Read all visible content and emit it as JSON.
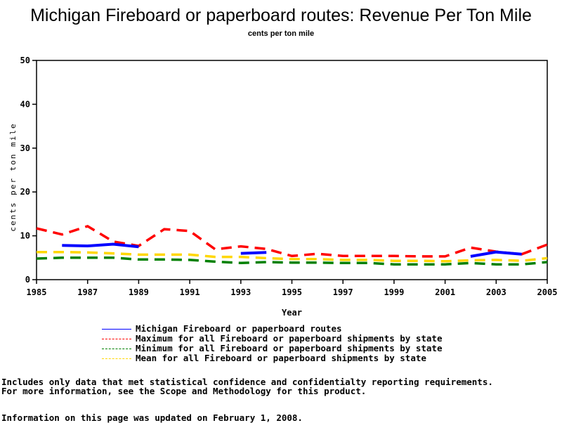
{
  "chart_data": {
    "type": "line",
    "title": "Michigan Fireboard or paperboard routes: Revenue Per Ton Mile",
    "subtitle": "cents per ton mile",
    "xlabel": "Year",
    "ylabel": "cents per ton mile",
    "xlim": [
      1985,
      2005
    ],
    "ylim": [
      0,
      50
    ],
    "x_ticks": [
      "1985",
      "1987",
      "1989",
      "1991",
      "1993",
      "1995",
      "1997",
      "1999",
      "2001",
      "2003",
      "2005"
    ],
    "y_ticks": [
      "0",
      "10",
      "20",
      "30",
      "40",
      "50"
    ],
    "grid": false,
    "legend_position": "bottom",
    "x": [
      1985,
      1986,
      1987,
      1988,
      1989,
      1990,
      1991,
      1992,
      1993,
      1994,
      1995,
      1996,
      1997,
      1998,
      1999,
      2000,
      2001,
      2002,
      2003,
      2004,
      2005
    ],
    "series": [
      {
        "name": "Michigan Fireboard or paperboard routes",
        "color": "#0000ff",
        "style": "solid",
        "values": [
          null,
          7.8,
          7.7,
          8.1,
          7.5,
          null,
          null,
          null,
          6.0,
          6.2,
          null,
          null,
          null,
          null,
          null,
          null,
          null,
          5.3,
          6.3,
          5.8,
          null
        ]
      },
      {
        "name": "Maximum for all Fireboard or paperboard shipments by state",
        "color": "#ff0000",
        "style": "dashed",
        "values": [
          11.7,
          10.3,
          12.2,
          8.7,
          7.7,
          11.5,
          11.1,
          6.9,
          7.6,
          7.0,
          5.4,
          5.9,
          5.4,
          5.4,
          5.4,
          5.3,
          5.3,
          7.3,
          6.4,
          5.8,
          8.0
        ]
      },
      {
        "name": "Minimum for all Fireboard or paperboard shipments by state",
        "color": "#008000",
        "style": "dashed",
        "values": [
          4.8,
          5.0,
          5.0,
          5.0,
          4.6,
          4.6,
          4.5,
          4.1,
          3.8,
          4.0,
          3.9,
          3.9,
          3.8,
          3.8,
          3.5,
          3.5,
          3.5,
          3.8,
          3.5,
          3.5,
          4.0
        ]
      },
      {
        "name": "Mean for all Fireboard or paperboard shipments by state",
        "color": "#ffd700",
        "style": "dashed",
        "values": [
          6.3,
          6.3,
          6.2,
          6.0,
          5.7,
          5.7,
          5.7,
          5.2,
          5.2,
          4.9,
          4.7,
          4.7,
          4.5,
          4.5,
          4.3,
          4.3,
          4.2,
          4.4,
          4.5,
          4.3,
          4.9
        ]
      }
    ]
  },
  "notes": {
    "line1": "Includes only data that met statistical confidence and confidentialty reporting requirements.",
    "line2": "For more information, see the Scope and Methodology for this product.",
    "updated": "Information on this page was updated on February 1, 2008."
  }
}
